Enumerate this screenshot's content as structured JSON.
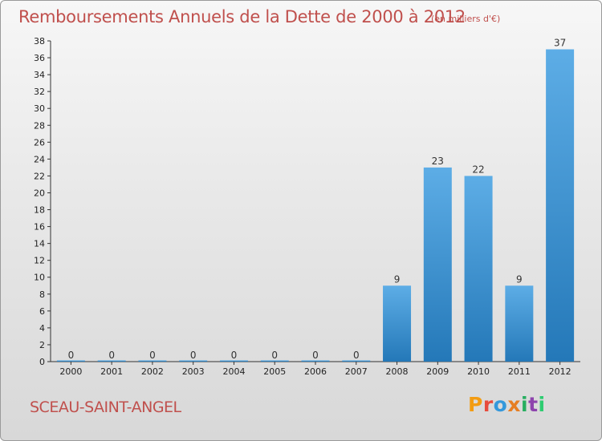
{
  "header": {
    "title": "Remboursements Annuels de la Dette de 2000 à 2012",
    "unit": "(en milliers d'€)"
  },
  "footer": {
    "commune": "SCEAU-SAINT-ANGEL",
    "brand": "Proxiti",
    "brand_colors": [
      "#f39c12",
      "#e74c3c",
      "#3498db",
      "#e67e22",
      "#27ae60",
      "#8e44ad",
      "#2ecc71"
    ]
  },
  "colors": {
    "title": "#c0504d",
    "bar_top": "#5dade6",
    "bar_bottom": "#2478b8",
    "axis": "#333333"
  },
  "chart_data": {
    "type": "bar",
    "categories": [
      "2000",
      "2001",
      "2002",
      "2003",
      "2004",
      "2005",
      "2006",
      "2007",
      "2008",
      "2009",
      "2010",
      "2011",
      "2012"
    ],
    "values": [
      0,
      0,
      0,
      0,
      0,
      0,
      0,
      0,
      9,
      23,
      22,
      9,
      37
    ],
    "title": "Remboursements Annuels de la Dette de 2000 à 2012",
    "xlabel": "",
    "ylabel": "",
    "ylim": [
      0,
      38
    ],
    "ytick_step": 2,
    "grid": false,
    "data_labels": true
  }
}
